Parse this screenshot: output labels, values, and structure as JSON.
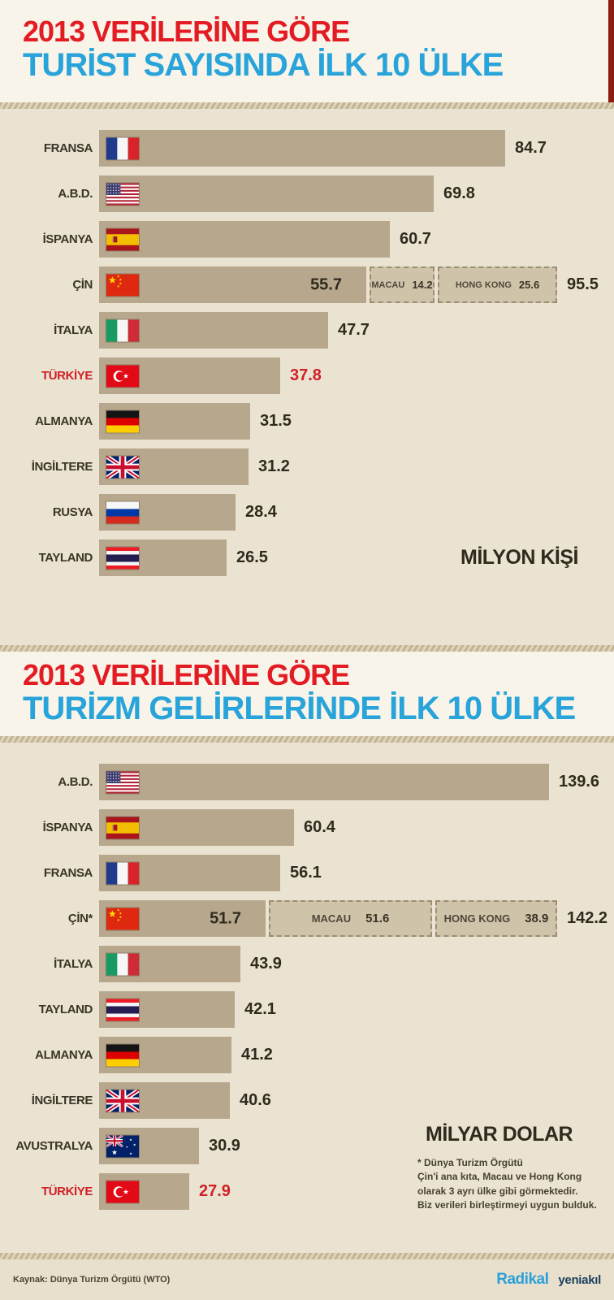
{
  "chart_data": [
    {
      "type": "bar",
      "orientation": "horizontal",
      "title": "2013 VERİLERİNE GÖRE",
      "subtitle": "TURİST SAYISINDA İLK 10 ÜLKE",
      "unit_label": "MİLYON KİŞİ",
      "xlim": [
        0,
        100
      ],
      "grid": false,
      "legend": "none",
      "rows": [
        {
          "country": "FRANSA",
          "flag": "fr",
          "value": 84.7
        },
        {
          "country": "A.B.D.",
          "flag": "us",
          "value": 69.8
        },
        {
          "country": "İSPANYA",
          "flag": "es",
          "value": 60.7
        },
        {
          "country": "ÇİN",
          "flag": "cn",
          "value": 55.7,
          "extensions": [
            {
              "label": "MACAU",
              "value": 14.2
            },
            {
              "label": "HONG KONG",
              "value": 25.6
            }
          ],
          "total": 95.5
        },
        {
          "country": "İTALYA",
          "flag": "it",
          "value": 47.7
        },
        {
          "country": "TÜRKİYE",
          "flag": "tr",
          "value": 37.8,
          "highlight": true
        },
        {
          "country": "ALMANYA",
          "flag": "de",
          "value": 31.5
        },
        {
          "country": "İNGİLTERE",
          "flag": "gb",
          "value": 31.2
        },
        {
          "country": "RUSYA",
          "flag": "ru",
          "value": 28.4
        },
        {
          "country": "TAYLAND",
          "flag": "th",
          "value": 26.5
        }
      ]
    },
    {
      "type": "bar",
      "orientation": "horizontal",
      "title": "2013 VERİLERİNE GÖRE",
      "subtitle": "TURİZM GELİRLERİNDE İLK 10 ÜLKE",
      "unit_label": "MİLYAR DOLAR",
      "xlim": [
        0,
        145
      ],
      "grid": false,
      "legend": "none",
      "footnote": "* Dünya Turizm Örgütü\nÇin'i ana kıta, Macau ve Hong Kong\nolarak 3 ayrı ülke gibi görmektedir.\nBiz verileri birleştirmeyi uygun bulduk.",
      "rows": [
        {
          "country": "A.B.D.",
          "flag": "us",
          "value": 139.6
        },
        {
          "country": "İSPANYA",
          "flag": "es",
          "value": 60.4
        },
        {
          "country": "FRANSA",
          "flag": "fr",
          "value": 56.1
        },
        {
          "country": "ÇİN*",
          "flag": "cn",
          "value": 51.7,
          "extensions": [
            {
              "label": "MACAU",
              "value": 51.6
            },
            {
              "label": "HONG KONG",
              "value": 38.9
            }
          ],
          "total": 142.2
        },
        {
          "country": "İTALYA",
          "flag": "it",
          "value": 43.9
        },
        {
          "country": "TAYLAND",
          "flag": "th",
          "value": 42.1
        },
        {
          "country": "ALMANYA",
          "flag": "de",
          "value": 41.2
        },
        {
          "country": "İNGİLTERE",
          "flag": "gb",
          "value": 40.6
        },
        {
          "country": "AVUSTRALYA",
          "flag": "au",
          "value": 30.9
        },
        {
          "country": "TÜRKİYE",
          "flag": "tr",
          "value": 27.9,
          "highlight": true
        }
      ]
    }
  ],
  "footer": {
    "source": "Kaynak: Dünya Turizm Örgütü (WTO)",
    "brand_radikal": "Radikal",
    "brand_yeniakil": "yeniakıl"
  },
  "colors": {
    "title_red": "#e31b23",
    "title_blue": "#29a4da",
    "bar_tan": "#b7a78c",
    "extension_fill": "#cfc3aa",
    "extension_border": "#9c8d73",
    "highlight_red": "#cf2027",
    "chart_background": "#ebe3d1",
    "header_background": "#f8f4e9",
    "text_dark": "#3a3528"
  }
}
